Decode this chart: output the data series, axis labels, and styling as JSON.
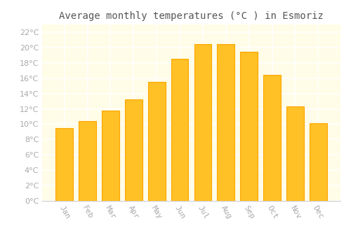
{
  "title": "Average monthly temperatures (°C ) in Esmoriz",
  "months": [
    "Jan",
    "Feb",
    "Mar",
    "Apr",
    "May",
    "Jun",
    "Jul",
    "Aug",
    "Sep",
    "Oct",
    "Nov",
    "Dec"
  ],
  "values": [
    9.5,
    10.4,
    11.8,
    13.2,
    15.5,
    18.5,
    20.4,
    20.4,
    19.4,
    16.4,
    12.3,
    10.1
  ],
  "bar_color": "#FFC125",
  "bar_edge_color": "#FFA500",
  "plot_bg_color": "#FFFDE7",
  "fig_bg_color": "#FFFFFF",
  "grid_color": "#FFFFFF",
  "ylim": [
    0,
    23
  ],
  "yticks": [
    0,
    2,
    4,
    6,
    8,
    10,
    12,
    14,
    16,
    18,
    20,
    22
  ],
  "title_fontsize": 10,
  "tick_fontsize": 8,
  "tick_color": "#AAAAAA",
  "title_color": "#555555"
}
